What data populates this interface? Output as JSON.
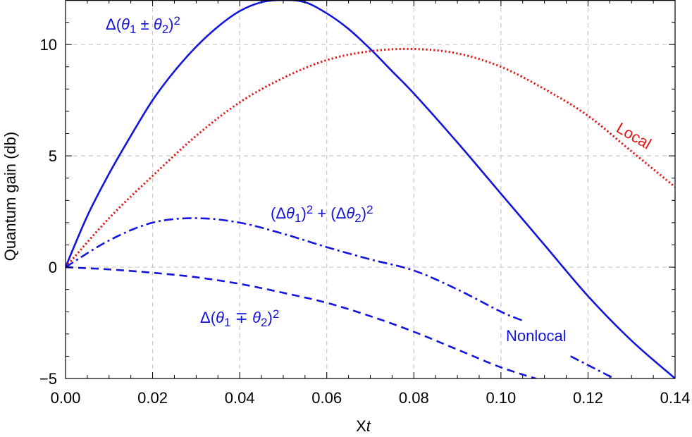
{
  "chart_data": {
    "type": "line",
    "xlabel": "Xt",
    "ylabel": "Quantum gain (db)",
    "xlim": [
      0,
      0.14
    ],
    "ylim": [
      -5,
      12
    ],
    "x_ticks": [
      0.0,
      0.02,
      0.04,
      0.06,
      0.08,
      0.1,
      0.12,
      0.14
    ],
    "x_tick_labels": [
      "0.00",
      "0.02",
      "0.04",
      "0.06",
      "0.08",
      "0.10",
      "0.12",
      "0.14"
    ],
    "y_ticks": [
      -5,
      0,
      5,
      10
    ],
    "y_tick_labels": [
      "−5",
      "0",
      "5",
      "10"
    ],
    "grid": true,
    "series": [
      {
        "name": "Δ(θ₁ ± θ₂)²",
        "color": "#1414dc",
        "style": "solid",
        "x": [
          0,
          0.005,
          0.01,
          0.015,
          0.02,
          0.025,
          0.03,
          0.035,
          0.04,
          0.045,
          0.05,
          0.055,
          0.06,
          0.065,
          0.07,
          0.075,
          0.08,
          0.09,
          0.1,
          0.11,
          0.12,
          0.13,
          0.14
        ],
        "y": [
          0,
          2.3,
          4.2,
          5.9,
          7.5,
          8.8,
          9.9,
          10.8,
          11.5,
          11.9,
          12.0,
          11.9,
          11.4,
          10.7,
          9.8,
          8.8,
          7.8,
          5.6,
          3.3,
          1.0,
          -1.3,
          -3.3,
          -5.0
        ]
      },
      {
        "name": "Local",
        "color": "#e61414",
        "style": "dotted",
        "x": [
          0,
          0.01,
          0.02,
          0.03,
          0.04,
          0.05,
          0.06,
          0.07,
          0.08,
          0.09,
          0.1,
          0.11,
          0.12,
          0.13,
          0.14
        ],
        "y": [
          0,
          2.2,
          4.1,
          5.9,
          7.4,
          8.5,
          9.3,
          9.7,
          9.8,
          9.6,
          9.0,
          8.0,
          6.8,
          5.2,
          3.6
        ]
      },
      {
        "name": "(Δθ₁)² + (Δθ₂)²",
        "color": "#1414dc",
        "style": "dashdot",
        "x": [
          0,
          0.01,
          0.02,
          0.03,
          0.04,
          0.05,
          0.06,
          0.07,
          0.08,
          0.09,
          0.1,
          0.105
        ],
        "y": [
          0,
          1.2,
          2.0,
          2.2,
          2.0,
          1.5,
          0.9,
          0.35,
          -0.15,
          -1.0,
          -2.0,
          -2.4
        ]
      },
      {
        "name": "Δ(θ₁ ∓ θ₂)²",
        "color": "#1414dc",
        "style": "dashed",
        "x": [
          0,
          0.01,
          0.02,
          0.03,
          0.04,
          0.05,
          0.06,
          0.07,
          0.08,
          0.09,
          0.1,
          0.108
        ],
        "y": [
          0,
          -0.1,
          -0.25,
          -0.45,
          -0.75,
          -1.15,
          -1.6,
          -2.2,
          -2.9,
          -3.7,
          -4.5,
          -5.0
        ]
      },
      {
        "name": "Nonlocal",
        "color": "#1414dc",
        "style": "dashdot",
        "x": [
          0.116,
          0.12,
          0.126
        ],
        "y": [
          -4.0,
          -4.4,
          -5.0
        ]
      }
    ],
    "annotations": [
      {
        "text": "Δ(θ₁ ± θ₂)²",
        "color": "#1414dc"
      },
      {
        "text": "Local",
        "color": "#e61414"
      },
      {
        "text": "(Δθ₁)² + (Δθ₂)²",
        "color": "#1414dc"
      },
      {
        "text": "Δ(θ₁ ∓ θ₂)²",
        "color": "#1414dc"
      },
      {
        "text": "Nonlocal",
        "color": "#1414dc"
      }
    ]
  }
}
